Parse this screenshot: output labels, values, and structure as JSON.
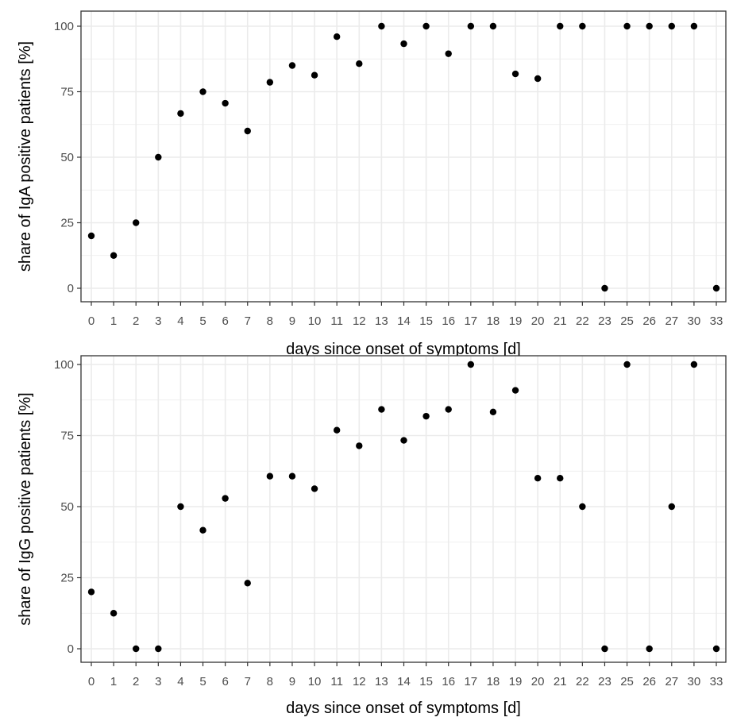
{
  "chart_data": [
    {
      "type": "scatter",
      "xlabel": "days since onset of symptoms [d]",
      "ylabel": "share of IgA positive patients [%]",
      "categories": [
        "0",
        "1",
        "2",
        "3",
        "4",
        "5",
        "6",
        "7",
        "8",
        "9",
        "10",
        "11",
        "12",
        "13",
        "14",
        "15",
        "16",
        "17",
        "18",
        "19",
        "20",
        "21",
        "22",
        "23",
        "25",
        "26",
        "27",
        "30",
        "33"
      ],
      "values": [
        20,
        12.5,
        25,
        50,
        66.7,
        75,
        70.6,
        60,
        78.6,
        85,
        81.3,
        96,
        85.7,
        100,
        93.3,
        100,
        89.5,
        100,
        100,
        81.8,
        80,
        100,
        100,
        0,
        100,
        100,
        100,
        100,
        0
      ],
      "yticks": [
        "0",
        "25",
        "50",
        "75",
        "100"
      ],
      "ylim": [
        0,
        100
      ],
      "grid": true,
      "point_color": "#000000",
      "grid_color": "#ebebeb",
      "panel_border_color": "#333333"
    },
    {
      "type": "scatter",
      "xlabel": "days since onset of symptoms [d]",
      "ylabel": "share of IgG positive patients [%]",
      "categories": [
        "0",
        "1",
        "2",
        "3",
        "4",
        "5",
        "6",
        "7",
        "8",
        "9",
        "10",
        "11",
        "12",
        "13",
        "14",
        "15",
        "16",
        "17",
        "18",
        "19",
        "20",
        "21",
        "22",
        "23",
        "25",
        "26",
        "27",
        "30",
        "33"
      ],
      "values": [
        20,
        12.5,
        0,
        0,
        50,
        41.7,
        52.9,
        23.1,
        60.7,
        60.7,
        56.3,
        76.9,
        71.4,
        84.2,
        73.3,
        81.8,
        84.2,
        100,
        83.3,
        90.9,
        60,
        60,
        50,
        0,
        100,
        0,
        50,
        100,
        0
      ],
      "yticks": [
        "0",
        "25",
        "50",
        "75",
        "100"
      ],
      "ylim": [
        0,
        100
      ],
      "grid": true,
      "point_color": "#000000",
      "grid_color": "#ebebeb",
      "panel_border_color": "#333333"
    }
  ]
}
